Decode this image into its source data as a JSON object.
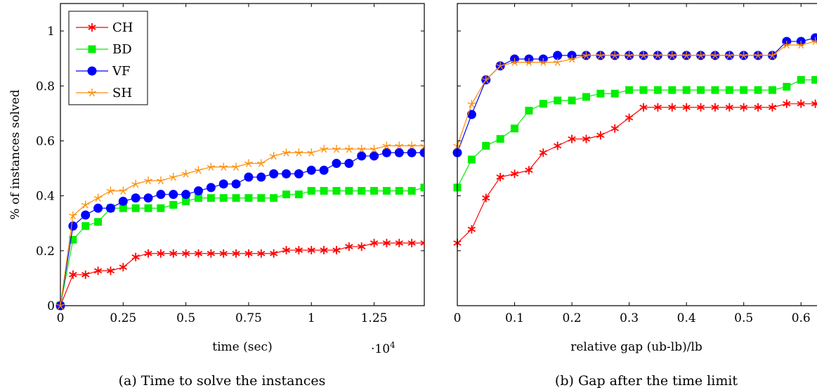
{
  "chart_data": [
    {
      "type": "line",
      "caption": "(a) Time to solve the instances",
      "xlabel": "time (sec)",
      "x_multiplier_label": "·10",
      "x_multiplier_exp": "4",
      "ylabel": "% of instances solved",
      "xlim": [
        0,
        14500
      ],
      "ylim": [
        0,
        1.1
      ],
      "x_ticks": [
        {
          "v": 0,
          "label": "0"
        },
        {
          "v": 2500,
          "label": "0.25"
        },
        {
          "v": 5000,
          "label": "0.5"
        },
        {
          "v": 7500,
          "label": "0.75"
        },
        {
          "v": 10000,
          "label": "1"
        },
        {
          "v": 12500,
          "label": "1.25"
        }
      ],
      "y_ticks": [
        {
          "v": 0,
          "label": "0"
        },
        {
          "v": 0.2,
          "label": "0.2"
        },
        {
          "v": 0.4,
          "label": "0.4"
        },
        {
          "v": 0.6,
          "label": "0.6"
        },
        {
          "v": 0.8,
          "label": "0.8"
        },
        {
          "v": 1,
          "label": "1"
        }
      ],
      "grid": false,
      "legend": {
        "placement": "top-left"
      },
      "x": [
        0,
        500,
        1000,
        1500,
        2000,
        2500,
        3000,
        3500,
        4000,
        4500,
        5000,
        5500,
        6000,
        6500,
        7000,
        7500,
        8000,
        8500,
        9000,
        9500,
        10000,
        10500,
        11000,
        11500,
        12000,
        12500,
        13000,
        13500,
        14000,
        14500
      ],
      "series": [
        {
          "name": "CH",
          "color": "#ff0000",
          "marker": "asterisk",
          "values": [
            0,
            0.113,
            0.113,
            0.127,
            0.127,
            0.14,
            0.177,
            0.19,
            0.19,
            0.19,
            0.19,
            0.19,
            0.19,
            0.19,
            0.19,
            0.19,
            0.19,
            0.19,
            0.202,
            0.202,
            0.202,
            0.202,
            0.202,
            0.215,
            0.215,
            0.228,
            0.228,
            0.228,
            0.228,
            0.228
          ]
        },
        {
          "name": "BD",
          "color": "#00ee00",
          "marker": "square",
          "values": [
            0,
            0.24,
            0.29,
            0.305,
            0.355,
            0.355,
            0.355,
            0.355,
            0.355,
            0.367,
            0.38,
            0.392,
            0.392,
            0.392,
            0.392,
            0.392,
            0.392,
            0.392,
            0.405,
            0.405,
            0.418,
            0.418,
            0.418,
            0.418,
            0.418,
            0.418,
            0.418,
            0.418,
            0.418,
            0.43
          ]
        },
        {
          "name": "VF",
          "color": "#0000ff",
          "marker": "circle",
          "values": [
            0,
            0.29,
            0.33,
            0.355,
            0.355,
            0.38,
            0.392,
            0.392,
            0.405,
            0.405,
            0.405,
            0.418,
            0.43,
            0.443,
            0.443,
            0.468,
            0.468,
            0.48,
            0.48,
            0.48,
            0.493,
            0.493,
            0.518,
            0.518,
            0.545,
            0.545,
            0.557,
            0.557,
            0.557,
            0.557
          ]
        },
        {
          "name": "SH",
          "color": "#ff8c00",
          "marker": "star",
          "values": [
            0,
            0.328,
            0.367,
            0.392,
            0.418,
            0.418,
            0.443,
            0.455,
            0.455,
            0.468,
            0.48,
            0.493,
            0.505,
            0.505,
            0.505,
            0.518,
            0.518,
            0.545,
            0.557,
            0.557,
            0.557,
            0.57,
            0.57,
            0.57,
            0.57,
            0.57,
            0.582,
            0.582,
            0.582,
            0.582
          ]
        }
      ]
    },
    {
      "type": "line",
      "caption": "(b) Gap after the time limit",
      "xlabel": "relative gap (ub-lb)/lb",
      "ylabel": "",
      "xlim": [
        0,
        0.65
      ],
      "ylim": [
        0,
        1.1
      ],
      "x_ticks": [
        {
          "v": 0,
          "label": "0"
        },
        {
          "v": 0.1,
          "label": "0.1"
        },
        {
          "v": 0.2,
          "label": "0.2"
        },
        {
          "v": 0.3,
          "label": "0.3"
        },
        {
          "v": 0.4,
          "label": "0.4"
        },
        {
          "v": 0.5,
          "label": "0.5"
        },
        {
          "v": 0.6,
          "label": "0.6"
        }
      ],
      "y_ticks": [
        {
          "v": 0,
          "label": ""
        },
        {
          "v": 0.2,
          "label": ""
        },
        {
          "v": 0.4,
          "label": ""
        },
        {
          "v": 0.6,
          "label": ""
        },
        {
          "v": 0.8,
          "label": ""
        },
        {
          "v": 1,
          "label": ""
        }
      ],
      "grid": false,
      "x": [
        0,
        0.025,
        0.05,
        0.075,
        0.1,
        0.125,
        0.15,
        0.175,
        0.2,
        0.225,
        0.25,
        0.275,
        0.3,
        0.325,
        0.35,
        0.375,
        0.4,
        0.425,
        0.45,
        0.475,
        0.5,
        0.525,
        0.55,
        0.575,
        0.6,
        0.625,
        0.65
      ],
      "series": [
        {
          "name": "CH",
          "color": "#ff0000",
          "marker": "asterisk",
          "values": [
            0.228,
            0.278,
            0.392,
            0.468,
            0.48,
            0.493,
            0.557,
            0.582,
            0.607,
            0.607,
            0.62,
            0.645,
            0.684,
            0.722,
            0.722,
            0.722,
            0.722,
            0.722,
            0.722,
            0.722,
            0.722,
            0.722,
            0.722,
            0.735,
            0.735,
            0.735,
            0.735
          ]
        },
        {
          "name": "BD",
          "color": "#00ee00",
          "marker": "square",
          "values": [
            0.43,
            0.532,
            0.582,
            0.607,
            0.645,
            0.71,
            0.735,
            0.747,
            0.747,
            0.76,
            0.772,
            0.772,
            0.785,
            0.785,
            0.785,
            0.785,
            0.785,
            0.785,
            0.785,
            0.785,
            0.785,
            0.785,
            0.785,
            0.797,
            0.822,
            0.822,
            0.86
          ]
        },
        {
          "name": "VF",
          "color": "#0000ff",
          "marker": "circle",
          "values": [
            0.557,
            0.696,
            0.822,
            0.873,
            0.898,
            0.898,
            0.898,
            0.911,
            0.911,
            0.911,
            0.911,
            0.911,
            0.911,
            0.911,
            0.911,
            0.911,
            0.911,
            0.911,
            0.911,
            0.911,
            0.911,
            0.911,
            0.911,
            0.962,
            0.962,
            0.975,
            0.987
          ]
        },
        {
          "name": "SH",
          "color": "#ff8c00",
          "marker": "star",
          "values": [
            0.582,
            0.734,
            0.822,
            0.873,
            0.886,
            0.886,
            0.886,
            0.886,
            0.898,
            0.911,
            0.911,
            0.911,
            0.911,
            0.911,
            0.911,
            0.911,
            0.911,
            0.911,
            0.911,
            0.911,
            0.911,
            0.911,
            0.911,
            0.949,
            0.949,
            0.962,
            0.975
          ]
        }
      ]
    }
  ]
}
